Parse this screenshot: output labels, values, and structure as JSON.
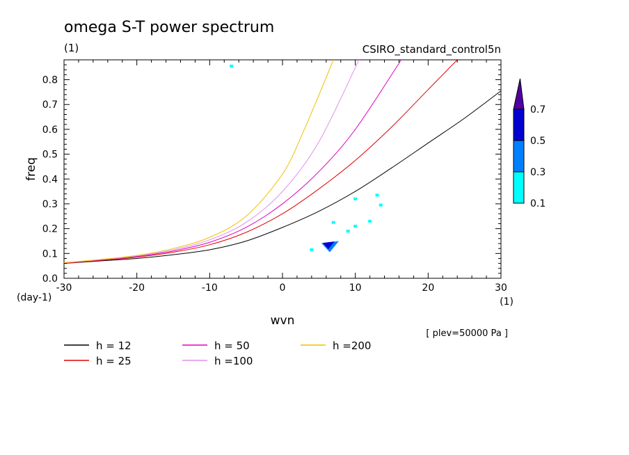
{
  "header": {
    "title": "omega S-T power spectrum",
    "units": "(1)",
    "experiment": "CSIRO_standard_control5n"
  },
  "chart_data": {
    "type": "line",
    "title": "omega S-T power spectrum",
    "xlabel": "wvn",
    "ylabel": "freq",
    "x_unit_label": "(1)",
    "y_unit_label": "(day-1)",
    "xlim": [
      -30,
      30
    ],
    "ylim": [
      0,
      0.88
    ],
    "x_ticks": [
      -30,
      -20,
      -10,
      0,
      10,
      20,
      30
    ],
    "x_tick_labels": [
      "-30",
      "-20",
      "-10",
      "0",
      "10",
      "20",
      "30"
    ],
    "y_ticks": [
      0,
      0.1,
      0.2,
      0.3,
      0.4,
      0.5,
      0.6,
      0.7,
      0.8
    ],
    "y_tick_labels": [
      "0.0",
      "0.1",
      "0.2",
      "0.3",
      "0.4",
      "0.5",
      "0.6",
      "0.7",
      "0.8"
    ],
    "grid": false,
    "annotation": "[ plev=50000 Pa ]",
    "series": [
      {
        "name": "h = 12",
        "color": "#000000",
        "x": [
          -30,
          -25,
          -20,
          -15,
          -10,
          -5,
          0,
          5,
          10,
          15,
          20,
          25,
          30
        ],
        "y": [
          0.06,
          0.07,
          0.08,
          0.095,
          0.115,
          0.15,
          0.205,
          0.27,
          0.35,
          0.445,
          0.545,
          0.645,
          0.755
        ]
      },
      {
        "name": "h = 25",
        "color": "#e00000",
        "x": [
          -30,
          -25,
          -20,
          -15,
          -10,
          -5,
          0,
          5,
          10,
          15,
          20,
          24
        ],
        "y": [
          0.06,
          0.072,
          0.085,
          0.105,
          0.135,
          0.185,
          0.26,
          0.36,
          0.475,
          0.61,
          0.76,
          0.88
        ]
      },
      {
        "name": "h = 50",
        "color": "#e000c0",
        "x": [
          -30,
          -25,
          -20,
          -15,
          -10,
          -5,
          0,
          5,
          10,
          16.3
        ],
        "y": [
          0.062,
          0.074,
          0.088,
          0.11,
          0.145,
          0.205,
          0.3,
          0.43,
          0.6,
          0.88
        ]
      },
      {
        "name": "h =100",
        "color": "#e090e8",
        "x": [
          -30,
          -25,
          -20,
          -15,
          -10,
          -5,
          0,
          5,
          10.5
        ],
        "y": [
          0.062,
          0.075,
          0.09,
          0.115,
          0.155,
          0.225,
          0.35,
          0.55,
          0.88
        ]
      },
      {
        "name": "h =200",
        "color": "#f0c000",
        "x": [
          -30,
          -25,
          -20,
          -15,
          -10,
          -5,
          0,
          3,
          7
        ],
        "y": [
          0.063,
          0.076,
          0.092,
          0.12,
          0.165,
          0.25,
          0.42,
          0.6,
          0.88
        ]
      }
    ],
    "colorbar": {
      "levels": [
        "0.1",
        "0.3",
        "0.5",
        "0.7"
      ],
      "colors": [
        "#00ffff",
        "#0080ff",
        "#0000d0",
        "#5000a0"
      ]
    },
    "contour_patches": [
      {
        "level": 0,
        "x": 7,
        "y": 0.225
      },
      {
        "level": 0,
        "x": 9,
        "y": 0.19
      },
      {
        "level": 0,
        "x": 10,
        "y": 0.21
      },
      {
        "level": 0,
        "x": 12,
        "y": 0.23
      },
      {
        "level": 0,
        "x": 4,
        "y": 0.115
      },
      {
        "level": 0,
        "x": 13.5,
        "y": 0.295
      },
      {
        "level": 0,
        "x": 10,
        "y": 0.32
      },
      {
        "level": 0,
        "x": 13,
        "y": 0.335
      },
      {
        "level": 0,
        "x": -7,
        "y": 0.855
      },
      {
        "level": 1,
        "x": 6.3,
        "y": 0.133
      },
      {
        "level": 2,
        "x": 6.2,
        "y": 0.137
      }
    ]
  }
}
